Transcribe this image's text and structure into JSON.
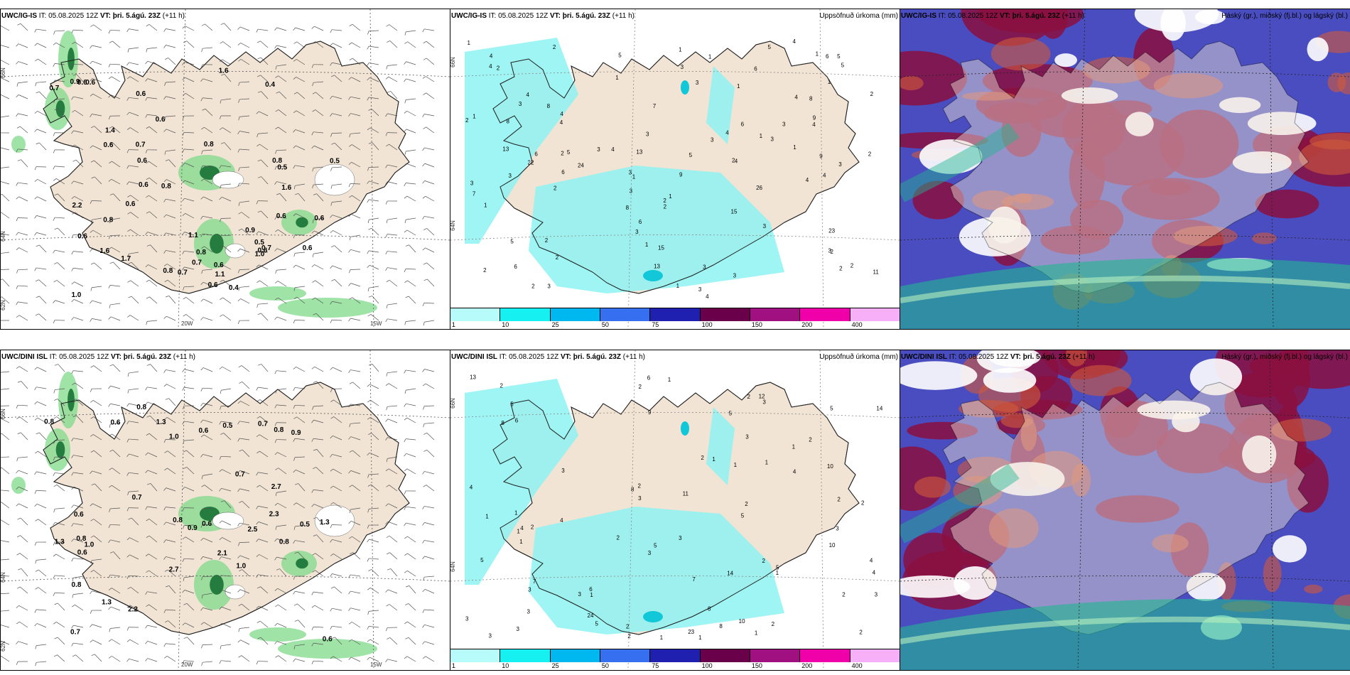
{
  "colors": {
    "land": "#f1e4d4",
    "green": "#7fd98a",
    "darkgreen": "#0f6b2e",
    "cyan": "#8ef2f2",
    "blue": "#4a4dc0",
    "maroon": "#8a1040",
    "orange": "#d05a3a",
    "teal": "#1fb990",
    "lightgreen": "#b8f0c0"
  },
  "panels": {
    "p1": {
      "model": "UWC/IG-IS",
      "it": " IT: 05.08.2025 12Z ",
      "vt": "VT: þri. 5.ágú. 23Z",
      "lead": " (+11 h)",
      "lat1": "66N",
      "lat2": "64N",
      "lat3": "62N",
      "lon1": "20W",
      "lon2": "15W",
      "values": [
        "0.8",
        "0.8",
        "0.8",
        "0.7",
        "0.5",
        "0.6",
        "0.7",
        "2.2",
        "0.8",
        "1.4",
        "0.8",
        "0.6",
        "0.7",
        "0.4",
        "0.4",
        "1.1",
        "0.5",
        "0.6",
        "0.6",
        "0.5",
        "0.6",
        "1.6",
        "0.6",
        "0.6",
        "0.6",
        "1.7",
        "1.6",
        "0.6",
        "0.6",
        "0.7",
        "0.9",
        "0.9",
        "0.6",
        "1.1",
        "1.0",
        "0.6",
        "0.6",
        "0.7",
        "0.8",
        "0.6",
        "1.0",
        "1.6",
        "0.6"
      ]
    },
    "p2": {
      "model": "UWC/IG-IS",
      "it": " IT: 05.08.2025 12Z ",
      "vt": "VT: þri. 5.ágú. 23Z",
      "lead": " (+11 h)",
      "right": "Uppsöfnuð úrkoma (mm)",
      "lat1": "66N",
      "lat2": "64N",
      "values": [
        "5",
        "4",
        "6",
        "3",
        "1",
        "5",
        "3",
        "4",
        "13",
        "4",
        "3",
        "5",
        "8",
        "11",
        "6",
        "13",
        "3",
        "2",
        "1",
        "2",
        "3",
        "3",
        "1",
        "23",
        "24",
        "2",
        "2",
        "9",
        "2",
        "15",
        "1",
        "1",
        "1",
        "1",
        "1",
        "4",
        "4",
        "3",
        "2",
        "6",
        "2",
        "4",
        "4",
        "3",
        "2",
        "1",
        "2",
        "2",
        "3",
        "1",
        "3",
        "2",
        "9",
        "3",
        "3",
        "2",
        "6",
        "3",
        "1",
        "5",
        "6",
        "2",
        "7",
        "9",
        "3",
        "5",
        "8",
        "2",
        "3",
        "8",
        "4",
        "4",
        "3",
        "6",
        "7",
        "6",
        "4",
        "3",
        "13",
        "4",
        "3",
        "8",
        "5",
        "4",
        "15",
        "3",
        "5",
        "2",
        "4",
        "3",
        "26",
        "22",
        "4",
        "2",
        "1",
        "1",
        "1",
        "2",
        "1"
      ],
      "legend": [
        "1",
        "10",
        "25",
        "50",
        "75",
        "100",
        "150",
        "200",
        "400"
      ]
    },
    "p3": {
      "model": "UWC/IG-IS",
      "it": " IT: 05.08.2025 12Z ",
      "vt": "VT: þri. 5.ágú. 23Z",
      "lead": " (+11 h)",
      "right": "Háský (gr.), miðský (fj.bl.) og lágský (bl.)"
    },
    "p4": {
      "model": "UWC/DINI ISL",
      "it": " IT: 05.08.2025 12Z ",
      "vt": "VT: þri. 5.ágú. 23Z",
      "lead": " (+11 h)",
      "lat1": "66N",
      "lat2": "64N",
      "lat3": "62N",
      "lon1": "20W",
      "lon2": "15W",
      "values": [
        "0.8",
        "0.8",
        "0.8",
        "0.8",
        "1.3",
        "0.5",
        "2.3",
        "0.8",
        "1.3",
        "0.7",
        "0.6",
        "1.0",
        "2.2",
        "2.7",
        "1.3",
        "2.5",
        "2.1",
        "0.9",
        "0.7",
        "0.7",
        "2.7",
        "0.9",
        "0.6",
        "0.8",
        "0.6",
        "0.8",
        "0.6",
        "1.0",
        "1.0",
        "0.6",
        "0.5",
        "1.3",
        "0.6",
        "0.7"
      ]
    },
    "p5": {
      "model": "UWC/DINI ISL",
      "it": " IT: 05.08.2025 12Z ",
      "vt": "VT: þri. 5.ágú. 23Z",
      "lead": " (+11 h)",
      "right": "Uppsöfnuð úrkoma (mm)",
      "lat1": "66N",
      "lat2": "64N",
      "values": [
        "14",
        "6",
        "12",
        "14",
        "3",
        "5",
        "3",
        "2",
        "5",
        "10",
        "5",
        "4",
        "2",
        "4",
        "2",
        "5",
        "1",
        "1",
        "2",
        "1",
        "1",
        "1",
        "10",
        "13",
        "2",
        "2",
        "1",
        "8",
        "7",
        "1",
        "2",
        "3",
        "2",
        "2",
        "2",
        "3",
        "5",
        "2",
        "3",
        "4",
        "2",
        "1",
        "1",
        "3",
        "6",
        "8",
        "5",
        "4",
        "2",
        "3",
        "3",
        "1",
        "4",
        "3",
        "3",
        "5",
        "3",
        "11",
        "9",
        "5",
        "10",
        "8",
        "8",
        "6",
        "3",
        "2",
        "7",
        "3",
        "4",
        "23",
        "24",
        "3",
        "2",
        "2",
        "1",
        "1",
        "2",
        "1",
        "1"
      ],
      "legend": [
        "1",
        "10",
        "25",
        "50",
        "75",
        "100",
        "150",
        "200",
        "400"
      ]
    },
    "p6": {
      "model": "UWC/DINI ISL",
      "it": " IT: 05.08.2025 12Z ",
      "vt": "VT: þri. 5.ágú. 23Z",
      "lead": " (+11 h)",
      "right": "Háský (gr.), miðský (fj.bl.) og lágský (bl.)"
    }
  }
}
